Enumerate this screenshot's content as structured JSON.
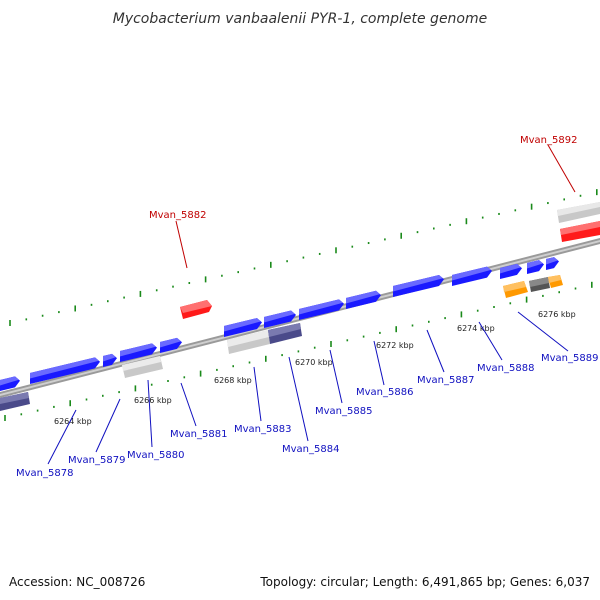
{
  "title": "Mycobacterium vanbaalenii PYR-1, complete genome",
  "footer": {
    "accession": "Accession: NC_008726",
    "summary": "Topology: circular; Length: 6,491,865 bp; Genes: 6,037"
  },
  "colors": {
    "forward_gene": "#1a1aff",
    "reverse_gene": "#1a1aff",
    "rna": "#ff1a1a",
    "pseudo": "#c8c8c8",
    "dark": "#4a4a8a",
    "orange": "#ff9900",
    "backbone": "#888888",
    "tick": "#1a8a1a",
    "label_blue": "#1010c0",
    "label_red": "#c00000"
  },
  "kbp_ticks": [
    "6264 kbp",
    "6266 kbp",
    "6268 kbp",
    "6270 kbp",
    "6272 kbp",
    "6274 kbp",
    "6276 kbp"
  ],
  "gene_labels_blue": [
    "Mvan_5878",
    "Mvan_5879",
    "Mvan_5880",
    "Mvan_5881",
    "Mvan_5883",
    "Mvan_5884",
    "Mvan_5885",
    "Mvan_5886",
    "Mvan_5887",
    "Mvan_5888",
    "Mvan_5889"
  ],
  "gene_labels_red": [
    "Mvan_5882",
    "Mvan_5892"
  ]
}
